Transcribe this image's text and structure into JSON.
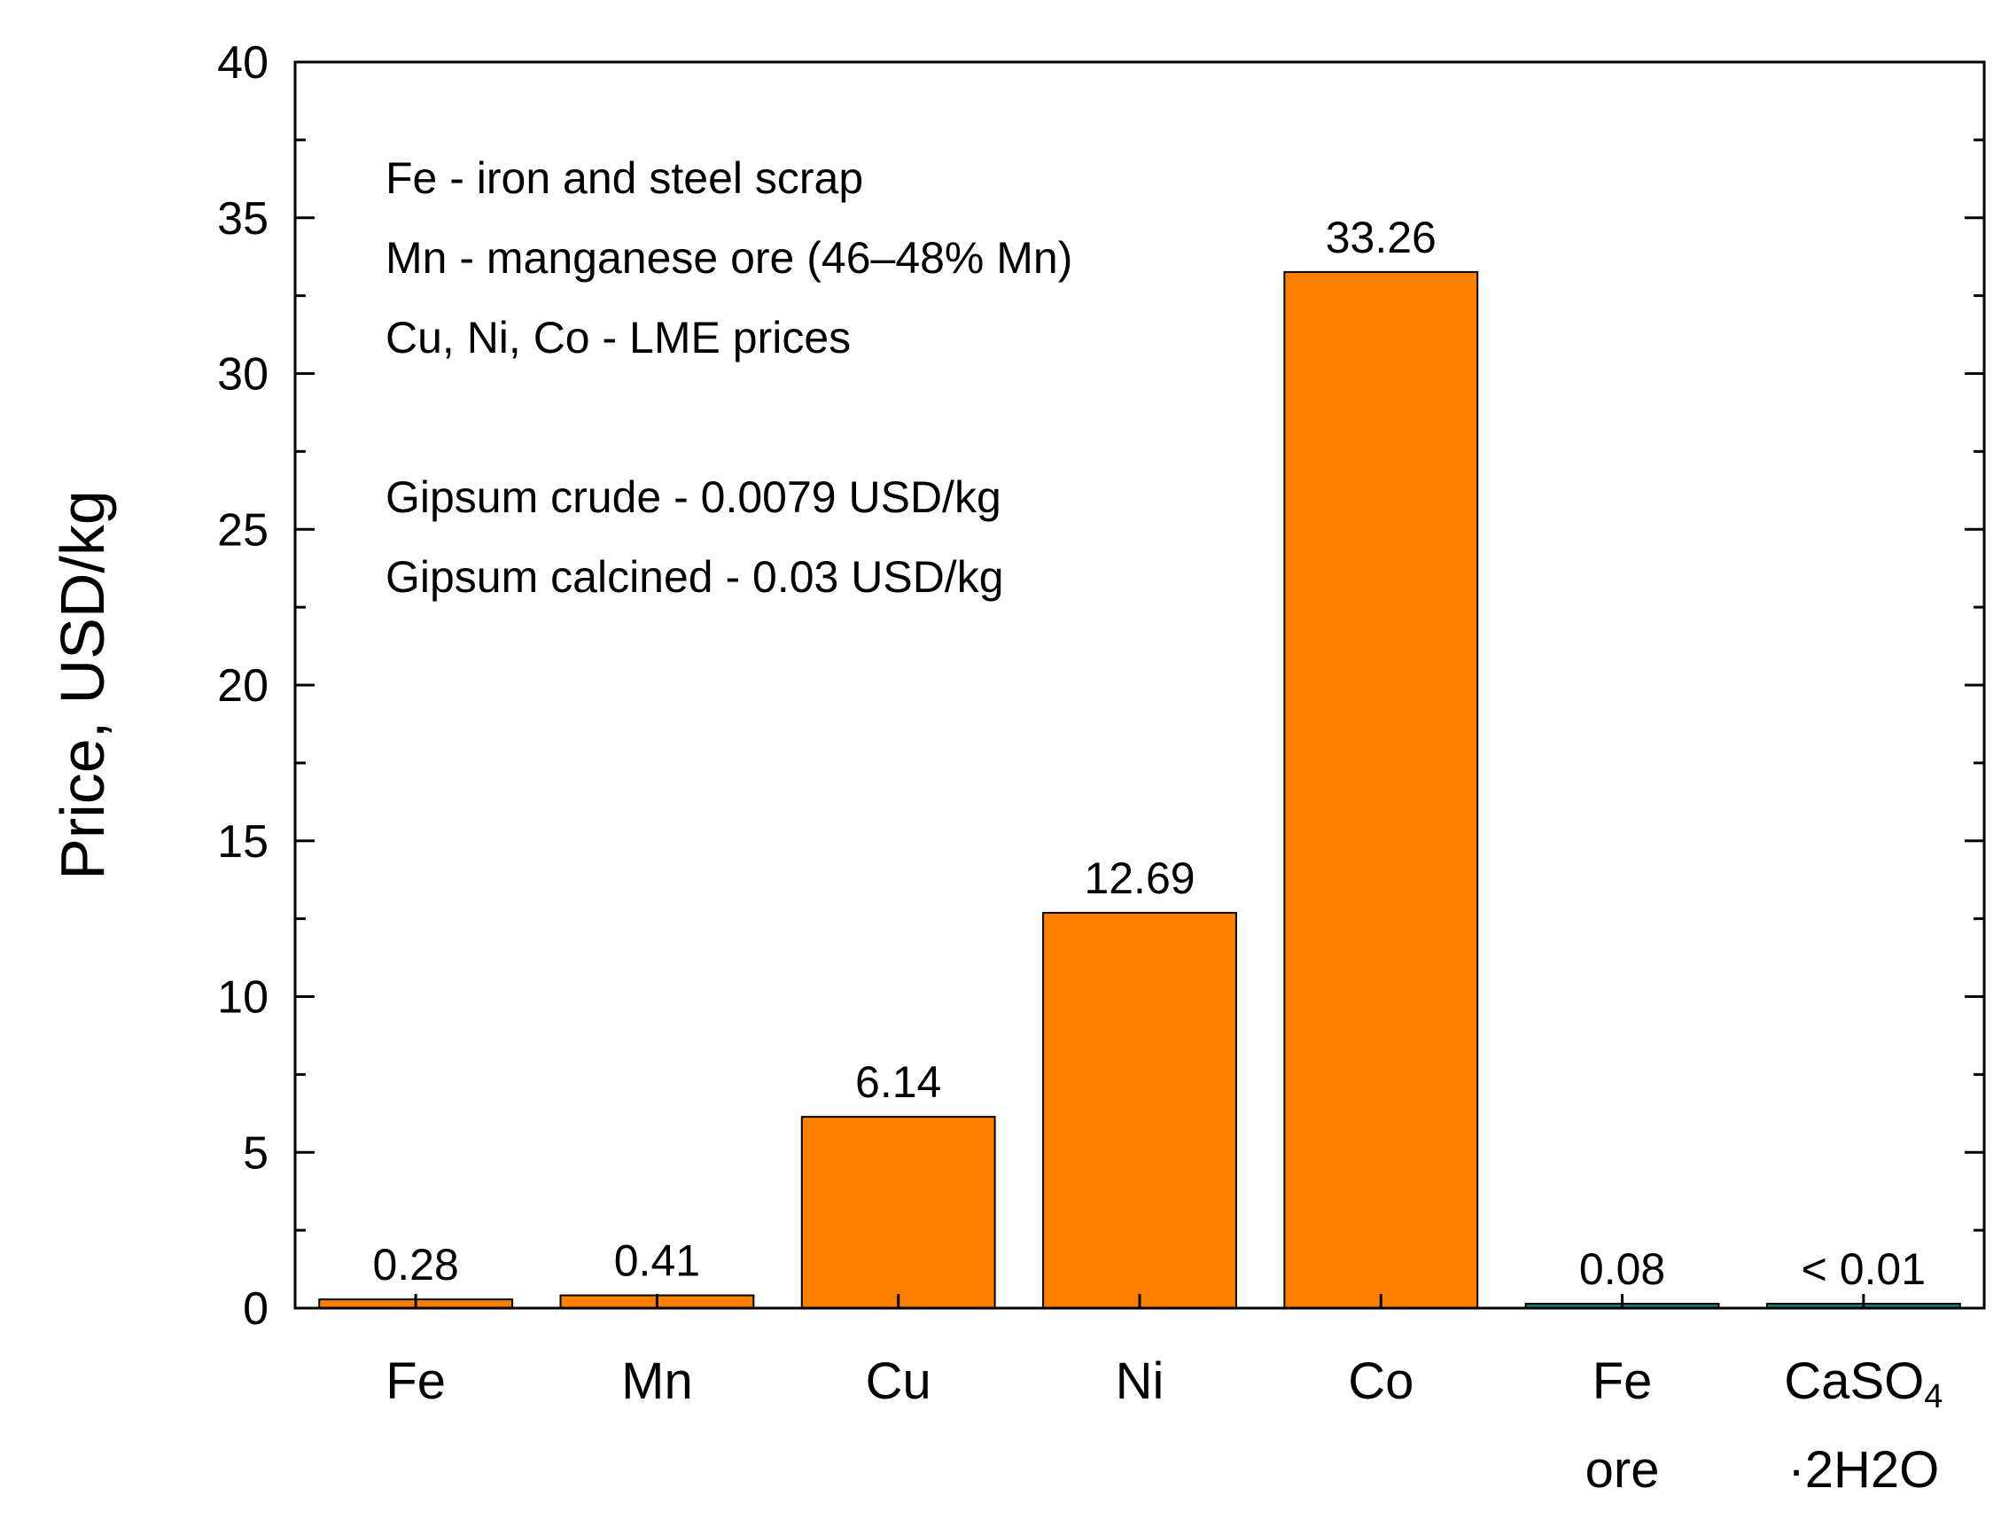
{
  "chart_data": {
    "type": "bar",
    "categories": [
      {
        "lines": [
          "Fe"
        ]
      },
      {
        "lines": [
          "Mn"
        ]
      },
      {
        "lines": [
          "Cu"
        ]
      },
      {
        "lines": [
          "Ni"
        ]
      },
      {
        "lines": [
          "Co"
        ]
      },
      {
        "lines": [
          "Fe",
          "ore"
        ]
      },
      {
        "lines": [
          "CaSO4",
          "·2H2O"
        ]
      }
    ],
    "values": [
      0.28,
      0.41,
      6.14,
      12.69,
      33.26,
      0.08,
      0.01
    ],
    "value_labels": [
      "0.28",
      "0.41",
      "6.14",
      "12.69",
      "33.26",
      "0.08",
      "< 0.01"
    ],
    "bar_colors": [
      "#ff8000",
      "#ff8000",
      "#ff8000",
      "#ff8000",
      "#ff8000",
      "#1f7a7a",
      "#1f7a7a"
    ],
    "ylabel": "Price, USD/kg",
    "xlabel": "",
    "ylim": [
      0,
      40
    ],
    "yticks": [
      0,
      5,
      10,
      15,
      20,
      25,
      30,
      35,
      40
    ],
    "grid": false,
    "annotations": [
      "Fe - iron and steel scrap",
      "Mn - manganese ore (46–48% Mn)",
      "Cu, Ni, Co - LME prices",
      "",
      "Gipsum crude - 0.0079 USD/kg",
      "Gipsum calcined - 0.03 USD/kg"
    ]
  }
}
